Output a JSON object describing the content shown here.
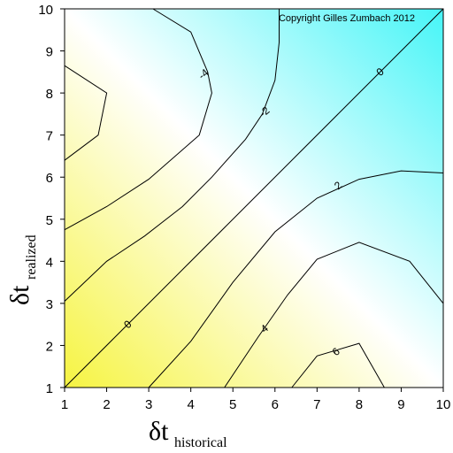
{
  "chart_data": {
    "type": "contour",
    "copyright": "Copyright Gilles Zumbach 2012",
    "xlabel_main": "δt",
    "xlabel_sub": "historical",
    "ylabel_main": "δt",
    "ylabel_sub": "realized",
    "xlim": [
      1,
      10
    ],
    "ylim": [
      1,
      10
    ],
    "x_ticks": [
      "1",
      "2",
      "3",
      "4",
      "5",
      "6",
      "7",
      "8",
      "9",
      "10"
    ],
    "y_ticks": [
      "1",
      "2",
      "3",
      "4",
      "5",
      "6",
      "7",
      "8",
      "9",
      "10"
    ],
    "colors": {
      "negative": "#46f5f7",
      "zero": "#ffffff",
      "positive": "#f6f442",
      "line": "#000000"
    },
    "contours": [
      {
        "level": "-4",
        "points": [
          [
            1,
            6.4
          ],
          [
            1.8,
            7.0
          ],
          [
            2.0,
            8.0
          ],
          [
            1.0,
            8.65
          ]
        ],
        "label_at": null
      },
      {
        "level": "-4",
        "points": [
          [
            3.1,
            10
          ],
          [
            4.0,
            9.45
          ],
          [
            4.4,
            8.5
          ],
          [
            4.5,
            8.0
          ],
          [
            4.2,
            7.0
          ],
          [
            3.0,
            5.95
          ],
          [
            2.0,
            5.3
          ],
          [
            1.0,
            4.75
          ]
        ],
        "label_at": [
          4.3,
          8.45
        ]
      },
      {
        "level": "-2",
        "points": [
          [
            6.1,
            10
          ],
          [
            6.1,
            9.2
          ],
          [
            6.0,
            8.3
          ],
          [
            5.7,
            7.5
          ],
          [
            5.3,
            6.9
          ],
          [
            4.5,
            6.0
          ],
          [
            3.8,
            5.3
          ],
          [
            2.9,
            4.6
          ],
          [
            2.0,
            4.0
          ],
          [
            1.0,
            3.05
          ]
        ],
        "label_at": [
          5.75,
          7.55
        ]
      },
      {
        "level": "0",
        "points": [
          [
            1,
            1
          ],
          [
            10,
            10
          ]
        ],
        "label_at": null,
        "labels_at": [
          [
            2.5,
            2.5
          ],
          [
            8.5,
            8.5
          ]
        ]
      },
      {
        "level": "2",
        "points": [
          [
            10,
            6.1
          ],
          [
            9.0,
            6.15
          ],
          [
            8.0,
            5.95
          ],
          [
            7.0,
            5.5
          ],
          [
            6.0,
            4.7
          ],
          [
            5.0,
            3.5
          ],
          [
            4.0,
            2.1
          ],
          [
            3.0,
            1.0
          ]
        ],
        "label_at": [
          7.5,
          5.8
        ]
      },
      {
        "level": "4",
        "points": [
          [
            10,
            3.0
          ],
          [
            9.2,
            4.0
          ],
          [
            8.0,
            4.45
          ],
          [
            7.0,
            4.05
          ],
          [
            6.3,
            3.2
          ],
          [
            5.6,
            2.2
          ],
          [
            4.8,
            1.0
          ]
        ],
        "label_at": [
          5.75,
          2.4
        ]
      },
      {
        "level": "6",
        "points": [
          [
            6.4,
            1.0
          ],
          [
            7.0,
            1.75
          ],
          [
            8.0,
            2.05
          ],
          [
            8.6,
            1.0
          ]
        ],
        "label_at": [
          7.45,
          1.85
        ]
      }
    ]
  }
}
